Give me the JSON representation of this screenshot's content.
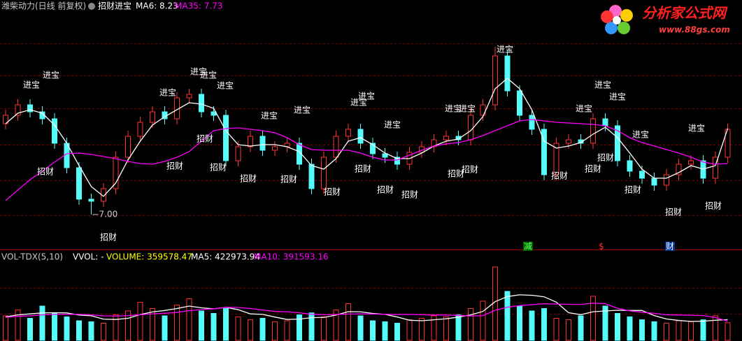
{
  "chart_data": [
    {
      "type": "candlestick",
      "title": "潍柴动力(日线 前复权)",
      "indicator": "招财进宝",
      "legend": [
        "MA6: 8.23",
        "MA35: 7.73"
      ],
      "up_color": "#ff3232",
      "down_color": "#54fcfc",
      "ylim": [
        6.5,
        10.07
      ],
      "open": [
        8.3,
        8.42,
        8.57,
        8.47,
        8.37,
        8.02,
        7.67,
        7.22,
        7.19,
        7.37,
        7.82,
        8.12,
        8.32,
        8.47,
        8.37,
        8.67,
        8.72,
        8.47,
        8.42,
        7.77,
        7.97,
        8.12,
        7.92,
        7.97,
        8.02,
        7.72,
        7.37,
        7.82,
        8.12,
        8.22,
        8.02,
        7.87,
        7.82,
        7.72,
        7.89,
        7.97,
        8.07,
        8.12,
        8.07,
        8.42,
        8.57,
        9.27,
        8.77,
        8.42,
        8.22,
        7.57,
        8.02,
        8.07,
        8.02,
        8.37,
        8.27,
        7.77,
        7.62,
        7.52,
        7.42,
        7.57,
        7.72,
        7.77,
        7.52,
        7.82
      ],
      "high": [
        8.5,
        8.65,
        8.65,
        8.55,
        8.45,
        8.1,
        7.75,
        7.3,
        7.45,
        7.9,
        8.2,
        8.4,
        8.55,
        8.55,
        8.75,
        8.8,
        8.8,
        8.55,
        8.5,
        8.05,
        8.2,
        8.2,
        8.05,
        8.1,
        8.1,
        7.8,
        7.9,
        8.2,
        8.3,
        8.3,
        8.1,
        7.95,
        7.9,
        7.97,
        8.05,
        8.15,
        8.2,
        8.2,
        8.5,
        8.65,
        9.4,
        9.35,
        8.85,
        8.5,
        8.3,
        8.1,
        8.15,
        8.15,
        8.45,
        8.45,
        8.35,
        7.85,
        7.7,
        7.6,
        7.65,
        7.8,
        7.85,
        7.85,
        7.9,
        8.3
      ],
      "low": [
        8.22,
        8.34,
        8.39,
        8.29,
        7.94,
        7.59,
        7.14,
        7.0,
        7.11,
        7.29,
        7.74,
        8.04,
        8.24,
        8.29,
        8.29,
        8.59,
        8.39,
        8.34,
        7.69,
        7.69,
        7.89,
        7.84,
        7.84,
        7.89,
        7.64,
        7.29,
        7.29,
        7.74,
        8.04,
        7.94,
        7.79,
        7.74,
        7.64,
        7.64,
        7.81,
        7.89,
        7.99,
        7.99,
        7.99,
        8.34,
        8.49,
        8.69,
        8.34,
        8.14,
        7.49,
        7.49,
        7.94,
        7.94,
        7.94,
        8.19,
        7.69,
        7.54,
        7.44,
        7.34,
        7.34,
        7.49,
        7.64,
        7.44,
        7.44,
        7.74
      ],
      "close": [
        8.42,
        8.57,
        8.47,
        8.37,
        8.02,
        7.67,
        7.22,
        7.19,
        7.37,
        7.82,
        8.12,
        8.32,
        8.47,
        8.37,
        8.67,
        8.72,
        8.47,
        8.42,
        7.77,
        7.97,
        8.12,
        7.92,
        7.97,
        8.02,
        7.72,
        7.37,
        7.82,
        8.12,
        8.22,
        8.02,
        7.87,
        7.82,
        7.72,
        7.89,
        7.97,
        8.07,
        8.12,
        8.07,
        8.42,
        8.57,
        9.27,
        8.77,
        8.42,
        8.22,
        7.57,
        8.02,
        8.07,
        8.02,
        8.37,
        8.27,
        7.77,
        7.62,
        7.52,
        7.42,
        7.57,
        7.72,
        7.77,
        7.52,
        7.82,
        8.22
      ],
      "series": [
        {
          "name": "MA6",
          "color": "#ffffff",
          "values": [
            8.3,
            8.45,
            8.5,
            8.45,
            8.28,
            8.02,
            7.7,
            7.4,
            7.26,
            7.45,
            7.78,
            8.05,
            8.28,
            8.4,
            8.5,
            8.6,
            8.58,
            8.52,
            8.2,
            8.0,
            7.98,
            8.0,
            8.0,
            7.97,
            7.9,
            7.7,
            7.65,
            7.8,
            8.05,
            8.1,
            8.0,
            7.88,
            7.8,
            7.8,
            7.88,
            7.98,
            8.05,
            8.08,
            8.2,
            8.4,
            8.8,
            8.95,
            8.8,
            8.5,
            8.05,
            7.95,
            7.98,
            8.03,
            8.15,
            8.25,
            8.1,
            7.88,
            7.65,
            7.52,
            7.52,
            7.6,
            7.7,
            7.65,
            7.7,
            8.23
          ]
        },
        {
          "name": "MA35",
          "color": "#ff00ff",
          "values": [
            7.2,
            7.35,
            7.5,
            7.62,
            7.75,
            7.87,
            7.88,
            7.86,
            7.83,
            7.8,
            7.76,
            7.73,
            7.72,
            7.76,
            7.82,
            7.9,
            8.05,
            8.2,
            8.23,
            8.24,
            8.22,
            8.2,
            8.17,
            8.1,
            8.0,
            7.93,
            7.92,
            7.92,
            7.92,
            7.88,
            7.82,
            7.78,
            7.78,
            7.85,
            7.92,
            7.98,
            8.01,
            8.03,
            8.07,
            8.13,
            8.2,
            8.27,
            8.34,
            8.36,
            8.34,
            8.32,
            8.31,
            8.3,
            8.29,
            8.27,
            8.2,
            8.1,
            8.03,
            7.98,
            7.93,
            7.88,
            7.82,
            7.75,
            7.72,
            7.73
          ]
        }
      ],
      "annotations": [
        "进宝",
        "进宝",
        "进宝",
        "进宝",
        "进宝",
        "进宝",
        "进宝",
        "进宝",
        "进宝",
        "进宝",
        "进宝",
        "进宝",
        "进宝",
        "进宝",
        "进宝",
        "进宝",
        "进宝",
        "进宝",
        "进宝",
        "招财",
        "招财",
        "招财",
        "招财",
        "招财",
        "招财",
        "招财",
        "招财",
        "招财",
        "招财",
        "招财",
        "招财",
        "招财",
        "招财",
        "招财",
        "招财",
        "招财",
        "招财",
        "招财"
      ],
      "low_label": "7.00",
      "markers": [
        "减",
        "$",
        "财"
      ]
    },
    {
      "type": "bar",
      "title": "VOL-TDX(5,10)",
      "legend": [
        "VVOL: -",
        "VOLUME: 359578.47",
        "MA5: 422973.94",
        "MA10: 391593.16"
      ],
      "ylim": [
        0,
        1600000
      ],
      "values": [
        500000,
        620000,
        450000,
        700000,
        550000,
        480000,
        400000,
        380000,
        350000,
        520000,
        600000,
        780000,
        650000,
        500000,
        720000,
        850000,
        600000,
        550000,
        650000,
        480000,
        420000,
        450000,
        380000,
        400000,
        520000,
        560000,
        480000,
        620000,
        750000,
        500000,
        400000,
        380000,
        350000,
        420000,
        450000,
        500000,
        480000,
        520000,
        650000,
        800000,
        1500000,
        1000000,
        700000,
        600000,
        650000,
        450000,
        420000,
        500000,
        900000,
        700000,
        550000,
        480000,
        420000,
        380000,
        350000,
        400000,
        380000,
        420000,
        500000,
        359578.47
      ],
      "series": [
        {
          "name": "MA5",
          "color": "#ffffff",
          "values": [
            480000,
            520000,
            540000,
            560000,
            564000,
            560000,
            516000,
            502000,
            432000,
            426000,
            450000,
            526000,
            580000,
            610000,
            650000,
            700000,
            664000,
            644000,
            674000,
            626000,
            540000,
            530000,
            476000,
            426000,
            434000,
            462000,
            468000,
            516000,
            586000,
            582000,
            550000,
            530000,
            476000,
            410000,
            400000,
            420000,
            440000,
            474000,
            520000,
            590000,
            790000,
            894000,
            930000,
            920000,
            890000,
            780000,
            564000,
            524000,
            584000,
            600000,
            614000,
            610000,
            610000,
            506000,
            436000,
            406000,
            386000,
            390000,
            410000,
            422973.94
          ]
        },
        {
          "name": "MA10",
          "color": "#ff00ff",
          "values": [
            470000,
            490000,
            500000,
            520000,
            530000,
            530000,
            530000,
            520000,
            500000,
            495000,
            505000,
            521000,
            541000,
            553000,
            570000,
            607000,
            627000,
            644000,
            674000,
            670000,
            652000,
            619000,
            592000,
            582000,
            562000,
            533000,
            521000,
            528000,
            538000,
            540000,
            538000,
            531000,
            528000,
            530000,
            523000,
            517000,
            517000,
            507000,
            497000,
            504000,
            614000,
            676000,
            710000,
            728000,
            748000,
            742000,
            736000,
            734000,
            759000,
            749000,
            654000,
            602000,
            574000,
            552000,
            522000,
            517000,
            513000,
            505000,
            465000,
            391593.16
          ]
        }
      ]
    }
  ],
  "watermark": {
    "title": "分析家公式网",
    "url": "www.88gs.com"
  }
}
